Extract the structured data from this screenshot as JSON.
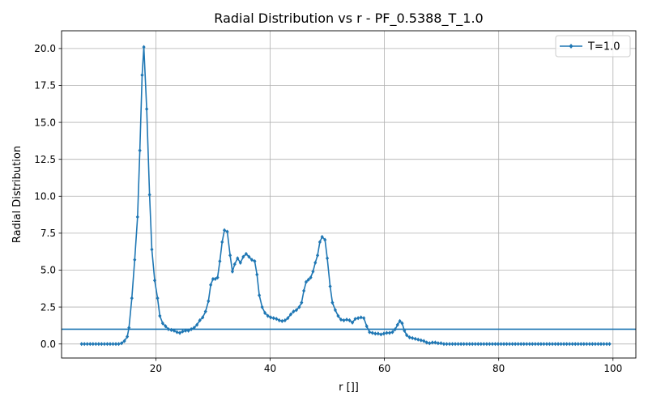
{
  "chart_data": {
    "type": "line",
    "title": "Radial Distribution vs r - PF_0.5388_T_1.0",
    "xlabel": "r []]",
    "ylabel": "Radial Distribution",
    "xlim": [
      3.5,
      104
    ],
    "ylim": [
      -0.95,
      21.2
    ],
    "xticks": [
      20,
      40,
      60,
      80,
      100
    ],
    "xtick_labels": [
      "20",
      "40",
      "60",
      "80",
      "100"
    ],
    "yticks": [
      0,
      2.5,
      5,
      7.5,
      10,
      12.5,
      15,
      17.5,
      20
    ],
    "ytick_labels": [
      "0.0",
      "2.5",
      "5.0",
      "7.5",
      "10.0",
      "12.5",
      "15.0",
      "17.5",
      "20.0"
    ],
    "grid": true,
    "legend_position": "top-right",
    "reference_line_y": 1.0,
    "series": [
      {
        "name": "T=1.0",
        "color": "#1f77b4",
        "marker": "diamond",
        "points": [
          [
            7.0,
            0.0
          ],
          [
            7.5,
            0.0
          ],
          [
            8.0,
            0.0
          ],
          [
            8.5,
            0.0
          ],
          [
            9.0,
            0.0
          ],
          [
            9.5,
            0.0
          ],
          [
            10.0,
            0.0
          ],
          [
            10.5,
            0.0
          ],
          [
            11.0,
            0.0
          ],
          [
            11.5,
            0.0
          ],
          [
            12.0,
            0.0
          ],
          [
            12.5,
            0.0
          ],
          [
            13.0,
            0.0
          ],
          [
            13.5,
            0.0
          ],
          [
            14.0,
            0.05
          ],
          [
            14.5,
            0.2
          ],
          [
            15.0,
            0.5
          ],
          [
            15.3,
            1.1
          ],
          [
            15.8,
            3.1
          ],
          [
            16.3,
            5.7
          ],
          [
            16.8,
            8.6
          ],
          [
            17.2,
            13.1
          ],
          [
            17.6,
            18.2
          ],
          [
            17.9,
            20.1
          ],
          [
            18.4,
            15.9
          ],
          [
            18.9,
            10.1
          ],
          [
            19.3,
            6.4
          ],
          [
            19.8,
            4.3
          ],
          [
            20.3,
            3.1
          ],
          [
            20.7,
            1.9
          ],
          [
            21.2,
            1.4
          ],
          [
            21.7,
            1.2
          ],
          [
            22.2,
            1.0
          ],
          [
            22.7,
            0.95
          ],
          [
            23.2,
            0.9
          ],
          [
            23.7,
            0.8
          ],
          [
            24.2,
            0.75
          ],
          [
            24.7,
            0.85
          ],
          [
            25.2,
            0.9
          ],
          [
            25.7,
            0.9
          ],
          [
            26.2,
            1.0
          ],
          [
            26.7,
            1.1
          ],
          [
            27.2,
            1.3
          ],
          [
            27.7,
            1.6
          ],
          [
            28.2,
            1.8
          ],
          [
            28.7,
            2.2
          ],
          [
            29.2,
            2.9
          ],
          [
            29.6,
            4.0
          ],
          [
            30.0,
            4.4
          ],
          [
            30.4,
            4.4
          ],
          [
            30.8,
            4.5
          ],
          [
            31.2,
            5.6
          ],
          [
            31.6,
            6.9
          ],
          [
            32.0,
            7.7
          ],
          [
            32.5,
            7.6
          ],
          [
            33.0,
            6.0
          ],
          [
            33.4,
            4.9
          ],
          [
            33.8,
            5.4
          ],
          [
            34.3,
            5.8
          ],
          [
            34.8,
            5.5
          ],
          [
            35.3,
            5.9
          ],
          [
            35.8,
            6.1
          ],
          [
            36.3,
            5.9
          ],
          [
            36.8,
            5.7
          ],
          [
            37.3,
            5.6
          ],
          [
            37.7,
            4.7
          ],
          [
            38.1,
            3.3
          ],
          [
            38.6,
            2.5
          ],
          [
            39.1,
            2.1
          ],
          [
            39.6,
            1.9
          ],
          [
            40.1,
            1.8
          ],
          [
            40.6,
            1.75
          ],
          [
            41.1,
            1.7
          ],
          [
            41.6,
            1.6
          ],
          [
            42.1,
            1.55
          ],
          [
            42.6,
            1.6
          ],
          [
            43.1,
            1.75
          ],
          [
            43.6,
            2.0
          ],
          [
            44.1,
            2.2
          ],
          [
            44.6,
            2.3
          ],
          [
            45.1,
            2.5
          ],
          [
            45.5,
            2.8
          ],
          [
            45.9,
            3.6
          ],
          [
            46.3,
            4.2
          ],
          [
            46.7,
            4.35
          ],
          [
            47.1,
            4.5
          ],
          [
            47.5,
            4.9
          ],
          [
            47.9,
            5.5
          ],
          [
            48.3,
            6.0
          ],
          [
            48.7,
            6.9
          ],
          [
            49.1,
            7.25
          ],
          [
            49.6,
            7.05
          ],
          [
            50.0,
            5.8
          ],
          [
            50.5,
            3.9
          ],
          [
            50.9,
            2.8
          ],
          [
            51.4,
            2.3
          ],
          [
            51.9,
            1.9
          ],
          [
            52.4,
            1.65
          ],
          [
            52.9,
            1.6
          ],
          [
            53.4,
            1.65
          ],
          [
            53.9,
            1.6
          ],
          [
            54.4,
            1.45
          ],
          [
            54.9,
            1.7
          ],
          [
            55.4,
            1.75
          ],
          [
            55.9,
            1.8
          ],
          [
            56.4,
            1.75
          ],
          [
            56.9,
            1.2
          ],
          [
            57.4,
            0.8
          ],
          [
            57.9,
            0.75
          ],
          [
            58.4,
            0.7
          ],
          [
            58.9,
            0.7
          ],
          [
            59.4,
            0.65
          ],
          [
            59.9,
            0.7
          ],
          [
            60.4,
            0.75
          ],
          [
            60.9,
            0.75
          ],
          [
            61.4,
            0.8
          ],
          [
            61.9,
            1.0
          ],
          [
            62.3,
            1.3
          ],
          [
            62.7,
            1.55
          ],
          [
            63.1,
            1.4
          ],
          [
            63.5,
            0.9
          ],
          [
            63.9,
            0.6
          ],
          [
            64.4,
            0.45
          ],
          [
            64.9,
            0.4
          ],
          [
            65.4,
            0.35
          ],
          [
            65.9,
            0.3
          ],
          [
            66.4,
            0.25
          ],
          [
            66.9,
            0.2
          ],
          [
            67.4,
            0.1
          ],
          [
            67.9,
            0.05
          ],
          [
            68.4,
            0.1
          ],
          [
            68.9,
            0.1
          ],
          [
            69.4,
            0.05
          ],
          [
            69.9,
            0.05
          ],
          [
            70.4,
            0.0
          ],
          [
            70.9,
            0.0
          ],
          [
            71.4,
            0.0
          ],
          [
            71.9,
            0.0
          ],
          [
            72.4,
            0.0
          ],
          [
            72.9,
            0.0
          ],
          [
            73.4,
            0.0
          ],
          [
            73.9,
            0.0
          ],
          [
            74.4,
            0.0
          ],
          [
            74.9,
            0.0
          ],
          [
            75.4,
            0.0
          ],
          [
            75.9,
            0.0
          ],
          [
            76.4,
            0.0
          ],
          [
            76.9,
            0.0
          ],
          [
            77.4,
            0.0
          ],
          [
            77.9,
            0.0
          ],
          [
            78.4,
            0.0
          ],
          [
            78.9,
            0.0
          ],
          [
            79.4,
            0.0
          ],
          [
            79.9,
            0.0
          ],
          [
            80.4,
            0.0
          ],
          [
            80.9,
            0.0
          ],
          [
            81.4,
            0.0
          ],
          [
            81.9,
            0.0
          ],
          [
            82.4,
            0.0
          ],
          [
            82.9,
            0.0
          ],
          [
            83.4,
            0.0
          ],
          [
            83.9,
            0.0
          ],
          [
            84.4,
            0.0
          ],
          [
            84.9,
            0.0
          ],
          [
            85.4,
            0.0
          ],
          [
            85.9,
            0.0
          ],
          [
            86.4,
            0.0
          ],
          [
            86.9,
            0.0
          ],
          [
            87.4,
            0.0
          ],
          [
            87.9,
            0.0
          ],
          [
            88.4,
            0.0
          ],
          [
            88.9,
            0.0
          ],
          [
            89.4,
            0.0
          ],
          [
            89.9,
            0.0
          ],
          [
            90.4,
            0.0
          ],
          [
            90.9,
            0.0
          ],
          [
            91.4,
            0.0
          ],
          [
            91.9,
            0.0
          ],
          [
            92.4,
            0.0
          ],
          [
            92.9,
            0.0
          ],
          [
            93.4,
            0.0
          ],
          [
            93.9,
            0.0
          ],
          [
            94.4,
            0.0
          ],
          [
            94.9,
            0.0
          ],
          [
            95.4,
            0.0
          ],
          [
            95.9,
            0.0
          ],
          [
            96.4,
            0.0
          ],
          [
            96.9,
            0.0
          ],
          [
            97.4,
            0.0
          ],
          [
            97.9,
            0.0
          ],
          [
            98.4,
            0.0
          ],
          [
            98.9,
            0.0
          ],
          [
            99.4,
            0.0
          ]
        ]
      }
    ]
  }
}
